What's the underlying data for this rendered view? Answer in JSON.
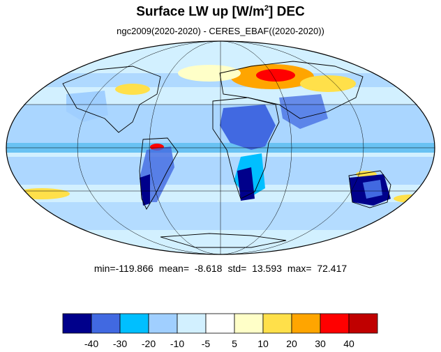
{
  "title": {
    "main": "Surface LW up [W/m",
    "sup": "2",
    "close": "]  DEC"
  },
  "subtitle": "ngc2009(2020-2020) - CERES_EBAF((2020-2020))",
  "stats": {
    "min_label": "min=-119.866",
    "mean_label": "mean=  -8.618",
    "std_label": "std=  13.593",
    "max_label": "max=  72.417"
  },
  "colorbar": {
    "colors": [
      "#00008b",
      "#4169e1",
      "#00bfff",
      "#a0cfff",
      "#d2f0ff",
      "#ffffff",
      "#ffffc8",
      "#ffe04a",
      "#ffa500",
      "#ff0000",
      "#c00000"
    ],
    "tick_labels": [
      "-40",
      "-30",
      "-20",
      "-10",
      "-5",
      "5",
      "10",
      "20",
      "30",
      "40"
    ]
  },
  "map": {
    "projection": "Mollweide",
    "ocean_color": "#a0cfff",
    "land_outline_color": "#000000",
    "grid_color": "#000000"
  }
}
